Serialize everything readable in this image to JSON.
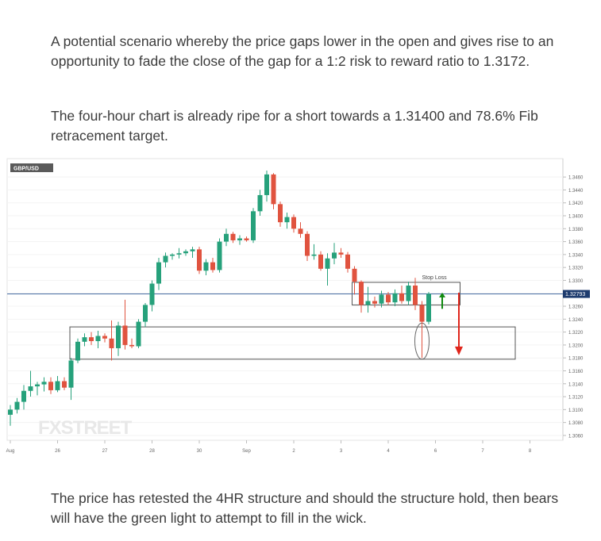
{
  "article": {
    "para1": "A potential scenario whereby the price gaps lower in the open and gives rise to an opportunity to fade the close of the gap for a 1:2 risk to reward ratio to 1.3172.",
    "para2": "The four-hour chart is already ripe for a short towards a 1.31400 and 78.6% Fib retracement target.",
    "para3": "The price has retested the 4HR structure and should the structure hold, then bears will have the green light to attempt to fill in the wick."
  },
  "chart_data": {
    "type": "candlestick",
    "symbol": "GBP/USD",
    "watermark": "FXSTREET",
    "ylim": [
      1.3055,
      1.347
    ],
    "yticks": [
      "1.3460",
      "1.3440",
      "1.3420",
      "1.3400",
      "1.3380",
      "1.3360",
      "1.3340",
      "1.3320",
      "1.3300",
      "1.3280",
      "1.3260",
      "1.3240",
      "1.3220",
      "1.3200",
      "1.3180",
      "1.3160",
      "1.3140",
      "1.3120",
      "1.3100",
      "1.3080",
      "1.3060"
    ],
    "xlabels": [
      {
        "label": "Aug",
        "idx": 0
      },
      {
        "label": "26",
        "idx": 7
      },
      {
        "label": "27",
        "idx": 14
      },
      {
        "label": "28",
        "idx": 21
      },
      {
        "label": "30",
        "idx": 28
      },
      {
        "label": "Sep",
        "idx": 35
      },
      {
        "label": "2",
        "idx": 42
      },
      {
        "label": "3",
        "idx": 49
      },
      {
        "label": "4",
        "idx": 56
      },
      {
        "label": "6",
        "idx": 63
      },
      {
        "label": "7",
        "idx": 70
      },
      {
        "label": "8",
        "idx": 77
      }
    ],
    "current_price": "1.32793",
    "current_value": 1.3279,
    "annotation_stop_loss": "Stop Loss",
    "colors": {
      "up": "#26a17b",
      "down": "#e0533f",
      "box": "#555555",
      "price_line": "#4a6fa5",
      "arrow_up": "#0f8a0f",
      "arrow_down": "#e0251b"
    },
    "candles": [
      {
        "o": 1.3092,
        "h": 1.3107,
        "l": 1.3075,
        "c": 1.31
      },
      {
        "o": 1.31,
        "h": 1.3118,
        "l": 1.3094,
        "c": 1.3112
      },
      {
        "o": 1.3112,
        "h": 1.3138,
        "l": 1.31,
        "c": 1.3129
      },
      {
        "o": 1.3129,
        "h": 1.316,
        "l": 1.312,
        "c": 1.3136
      },
      {
        "o": 1.3136,
        "h": 1.3143,
        "l": 1.3122,
        "c": 1.3139
      },
      {
        "o": 1.3139,
        "h": 1.315,
        "l": 1.3128,
        "c": 1.3143
      },
      {
        "o": 1.3143,
        "h": 1.315,
        "l": 1.3124,
        "c": 1.313
      },
      {
        "o": 1.313,
        "h": 1.3152,
        "l": 1.3127,
        "c": 1.3144
      },
      {
        "o": 1.3144,
        "h": 1.315,
        "l": 1.313,
        "c": 1.3134
      },
      {
        "o": 1.3134,
        "h": 1.318,
        "l": 1.3115,
        "c": 1.3176
      },
      {
        "o": 1.3176,
        "h": 1.321,
        "l": 1.3172,
        "c": 1.3205
      },
      {
        "o": 1.3205,
        "h": 1.3218,
        "l": 1.3198,
        "c": 1.3212
      },
      {
        "o": 1.3212,
        "h": 1.322,
        "l": 1.32,
        "c": 1.3206
      },
      {
        "o": 1.3206,
        "h": 1.3222,
        "l": 1.3195,
        "c": 1.3214
      },
      {
        "o": 1.3214,
        "h": 1.3218,
        "l": 1.3204,
        "c": 1.321
      },
      {
        "o": 1.321,
        "h": 1.3238,
        "l": 1.3176,
        "c": 1.3195
      },
      {
        "o": 1.3195,
        "h": 1.3236,
        "l": 1.3183,
        "c": 1.323
      },
      {
        "o": 1.323,
        "h": 1.327,
        "l": 1.3193,
        "c": 1.32
      },
      {
        "o": 1.32,
        "h": 1.321,
        "l": 1.3195,
        "c": 1.3198
      },
      {
        "o": 1.3198,
        "h": 1.324,
        "l": 1.3195,
        "c": 1.3236
      },
      {
        "o": 1.3236,
        "h": 1.3265,
        "l": 1.3228,
        "c": 1.3262
      },
      {
        "o": 1.3262,
        "h": 1.33,
        "l": 1.3252,
        "c": 1.3295
      },
      {
        "o": 1.3295,
        "h": 1.3335,
        "l": 1.3285,
        "c": 1.3328
      },
      {
        "o": 1.3328,
        "h": 1.3343,
        "l": 1.332,
        "c": 1.3338
      },
      {
        "o": 1.3338,
        "h": 1.3342,
        "l": 1.3332,
        "c": 1.334
      },
      {
        "o": 1.334,
        "h": 1.335,
        "l": 1.3334,
        "c": 1.3342
      },
      {
        "o": 1.3342,
        "h": 1.3348,
        "l": 1.3338,
        "c": 1.3345
      },
      {
        "o": 1.3345,
        "h": 1.3352,
        "l": 1.3335,
        "c": 1.3348
      },
      {
        "o": 1.3348,
        "h": 1.3352,
        "l": 1.331,
        "c": 1.3315
      },
      {
        "o": 1.3315,
        "h": 1.3333,
        "l": 1.3308,
        "c": 1.3328
      },
      {
        "o": 1.3328,
        "h": 1.3335,
        "l": 1.3312,
        "c": 1.3316
      },
      {
        "o": 1.3316,
        "h": 1.3365,
        "l": 1.3312,
        "c": 1.336
      },
      {
        "o": 1.336,
        "h": 1.338,
        "l": 1.3353,
        "c": 1.3372
      },
      {
        "o": 1.3372,
        "h": 1.3375,
        "l": 1.3358,
        "c": 1.3362
      },
      {
        "o": 1.3362,
        "h": 1.337,
        "l": 1.3355,
        "c": 1.3365
      },
      {
        "o": 1.3365,
        "h": 1.3368,
        "l": 1.336,
        "c": 1.3362
      },
      {
        "o": 1.3362,
        "h": 1.3412,
        "l": 1.3358,
        "c": 1.3407
      },
      {
        "o": 1.3407,
        "h": 1.344,
        "l": 1.34,
        "c": 1.3432
      },
      {
        "o": 1.3432,
        "h": 1.347,
        "l": 1.3422,
        "c": 1.3464
      },
      {
        "o": 1.3464,
        "h": 1.3466,
        "l": 1.341,
        "c": 1.3418
      },
      {
        "o": 1.3418,
        "h": 1.3422,
        "l": 1.3383,
        "c": 1.339
      },
      {
        "o": 1.339,
        "h": 1.3405,
        "l": 1.338,
        "c": 1.3398
      },
      {
        "o": 1.3398,
        "h": 1.3402,
        "l": 1.3374,
        "c": 1.338
      },
      {
        "o": 1.338,
        "h": 1.339,
        "l": 1.3366,
        "c": 1.3372
      },
      {
        "o": 1.3372,
        "h": 1.3376,
        "l": 1.333,
        "c": 1.3338
      },
      {
        "o": 1.3338,
        "h": 1.3356,
        "l": 1.3332,
        "c": 1.334
      },
      {
        "o": 1.334,
        "h": 1.3345,
        "l": 1.3315,
        "c": 1.3318
      },
      {
        "o": 1.3318,
        "h": 1.3342,
        "l": 1.3292,
        "c": 1.3334
      },
      {
        "o": 1.3334,
        "h": 1.3358,
        "l": 1.3325,
        "c": 1.3343
      },
      {
        "o": 1.3343,
        "h": 1.335,
        "l": 1.3335,
        "c": 1.334
      },
      {
        "o": 1.334,
        "h": 1.3344,
        "l": 1.3312,
        "c": 1.3318
      },
      {
        "o": 1.3318,
        "h": 1.3322,
        "l": 1.3278,
        "c": 1.3298
      },
      {
        "o": 1.3298,
        "h": 1.33,
        "l": 1.325,
        "c": 1.3262
      },
      {
        "o": 1.3262,
        "h": 1.329,
        "l": 1.325,
        "c": 1.3268
      },
      {
        "o": 1.3268,
        "h": 1.3275,
        "l": 1.3258,
        "c": 1.3264
      },
      {
        "o": 1.3264,
        "h": 1.3284,
        "l": 1.3258,
        "c": 1.3278
      },
      {
        "o": 1.3278,
        "h": 1.3282,
        "l": 1.3262,
        "c": 1.3266
      },
      {
        "o": 1.3266,
        "h": 1.3286,
        "l": 1.326,
        "c": 1.328
      },
      {
        "o": 1.328,
        "h": 1.3292,
        "l": 1.3264,
        "c": 1.3268
      },
      {
        "o": 1.3268,
        "h": 1.3298,
        "l": 1.3262,
        "c": 1.3292
      },
      {
        "o": 1.3292,
        "h": 1.3304,
        "l": 1.3254,
        "c": 1.3262
      },
      {
        "o": 1.3262,
        "h": 1.3268,
        "l": 1.318,
        "c": 1.3236
      },
      {
        "o": 1.3236,
        "h": 1.3282,
        "l": 1.3232,
        "c": 1.3279
      }
    ]
  }
}
